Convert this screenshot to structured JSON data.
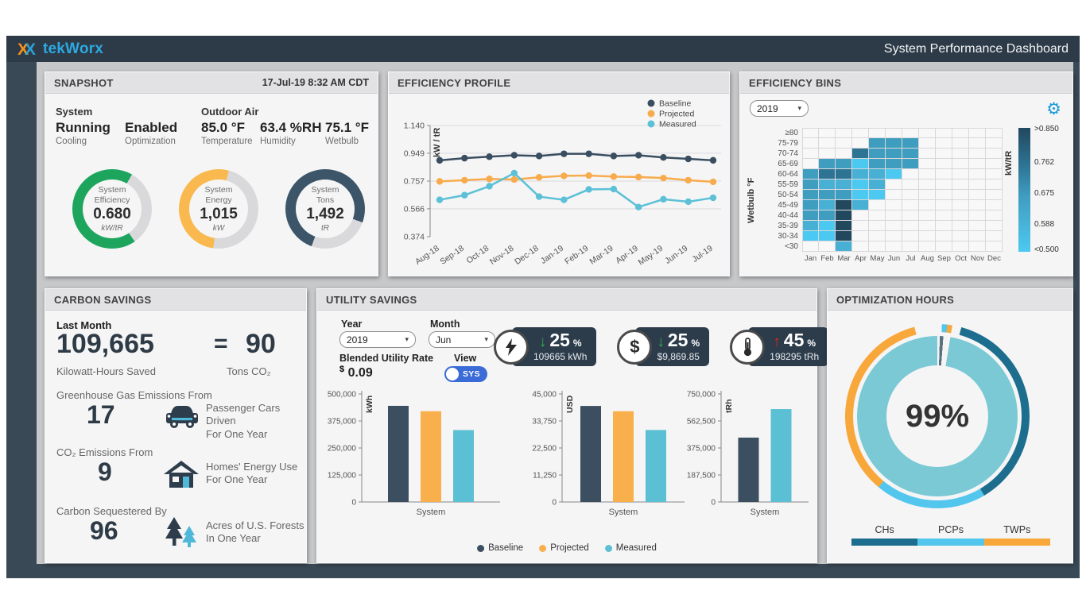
{
  "titlebar": {
    "logo": "tekWorx",
    "title": "System Performance Dashboard"
  },
  "icons": {
    "caret": "▾",
    "gear": "⚙",
    "equals": "="
  },
  "snapshot": {
    "header": "SNAPSHOT",
    "timestamp": "17-Jul-19 8:32 AM CDT",
    "system_label": "System",
    "outdoor_label": "Outdoor Air",
    "stats": [
      {
        "value": "Running",
        "label": "Cooling"
      },
      {
        "value": "Enabled",
        "label": "Optimization"
      },
      {
        "value": "85.0 °F",
        "label": "Temperature"
      },
      {
        "value": "63.4 %RH",
        "label": "Humidity"
      },
      {
        "value": "75.1 °F",
        "label": "Wetbulb"
      }
    ],
    "track_color": "#d9d9db",
    "gauges": [
      {
        "line1": "System",
        "line2": "Efficiency",
        "value": "0.680",
        "unit": "kW/tR",
        "fraction": 0.68,
        "start_deg": 30,
        "color": "#1ea55d"
      },
      {
        "line1": "System",
        "line2": "Energy",
        "value": "1,015",
        "unit": "kW",
        "fraction": 0.52,
        "start_deg": 15,
        "color": "#f9b94e"
      },
      {
        "line1": "System",
        "line2": "Tons",
        "value": "1,492",
        "unit": "tR",
        "fraction": 0.75,
        "start_deg": 110,
        "color": "#3d5568"
      }
    ]
  },
  "profile": {
    "header": "EFFICIENCY PROFILE",
    "chart": {
      "type": "line",
      "ylabel": "kW / tR",
      "ymin": 0.374,
      "ymax": 1.14,
      "yticks": [
        "1.140",
        "0.949",
        "0.757",
        "0.566",
        "0.374"
      ],
      "x": [
        "Aug-18",
        "Sep-18",
        "Oct-18",
        "Nov-18",
        "Dec-18",
        "Jan-19",
        "Feb-19",
        "Mar-19",
        "Apr-19",
        "May-19",
        "Jun-19",
        "Jul-19"
      ],
      "series": [
        {
          "name": "Baseline",
          "color": "#3a4e60",
          "values": [
            0.9,
            0.915,
            0.925,
            0.935,
            0.93,
            0.945,
            0.945,
            0.93,
            0.935,
            0.92,
            0.91,
            0.9
          ]
        },
        {
          "name": "Projected",
          "color": "#f8ab4c",
          "values": [
            0.755,
            0.763,
            0.772,
            0.768,
            0.783,
            0.793,
            0.795,
            0.788,
            0.785,
            0.778,
            0.763,
            0.752
          ]
        },
        {
          "name": "Measured",
          "color": "#5cc0d6",
          "values": [
            0.628,
            0.66,
            0.722,
            0.812,
            0.65,
            0.628,
            0.7,
            0.702,
            0.578,
            0.632,
            0.615,
            0.642
          ]
        }
      ]
    }
  },
  "bins": {
    "header": "EFFICIENCY BINS",
    "year": "2019",
    "ylabel": "Wetbulb °F",
    "colorbar_label": "kW/tR",
    "colorbar_ticks": [
      ">0.850",
      "0.762",
      "0.675",
      "0.588",
      "<0.500"
    ],
    "months": [
      "Jan",
      "Feb",
      "Mar",
      "Apr",
      "May",
      "Jun",
      "Jul",
      "Aug",
      "Sep",
      "Oct",
      "Nov",
      "Dec"
    ],
    "palette": {
      "1": "#4cc9f1",
      "2": "#47b0d4",
      "3": "#3f9dc0",
      "4": "#2d7394",
      "5": "#22485e"
    },
    "rows": [
      {
        "label": "≥80",
        "cells": [
          0,
          0,
          0,
          0,
          0,
          0,
          0,
          0,
          0,
          0,
          0,
          0
        ]
      },
      {
        "label": "75-79",
        "cells": [
          0,
          0,
          0,
          0,
          3,
          3,
          3,
          0,
          0,
          0,
          0,
          0
        ]
      },
      {
        "label": "70-74",
        "cells": [
          0,
          0,
          0,
          4,
          3,
          3,
          3,
          0,
          0,
          0,
          0,
          0
        ]
      },
      {
        "label": "65-69",
        "cells": [
          0,
          3,
          3,
          1,
          3,
          3,
          3,
          0,
          0,
          0,
          0,
          0
        ]
      },
      {
        "label": "60-64",
        "cells": [
          3,
          4,
          4,
          2,
          2,
          1,
          0,
          0,
          0,
          0,
          0,
          0
        ]
      },
      {
        "label": "55-59",
        "cells": [
          3,
          2,
          2,
          1,
          2,
          0,
          0,
          0,
          0,
          0,
          0,
          0
        ]
      },
      {
        "label": "50-54",
        "cells": [
          3,
          3,
          3,
          1,
          1,
          0,
          0,
          0,
          0,
          0,
          0,
          0
        ]
      },
      {
        "label": "45-49",
        "cells": [
          3,
          2,
          5,
          2,
          0,
          0,
          0,
          0,
          0,
          0,
          0,
          0
        ]
      },
      {
        "label": "40-44",
        "cells": [
          3,
          3,
          5,
          0,
          0,
          0,
          0,
          0,
          0,
          0,
          0,
          0
        ]
      },
      {
        "label": "35-39",
        "cells": [
          2,
          1,
          5,
          0,
          0,
          0,
          0,
          0,
          0,
          0,
          0,
          0
        ]
      },
      {
        "label": "30-34",
        "cells": [
          1,
          1,
          5,
          0,
          0,
          0,
          0,
          0,
          0,
          0,
          0,
          0
        ]
      },
      {
        "label": "<30",
        "cells": [
          0,
          0,
          2,
          0,
          0,
          0,
          0,
          0,
          0,
          0,
          0,
          0
        ]
      }
    ]
  },
  "carbon": {
    "header": "CARBON SAVINGS",
    "last_month_label": "Last Month",
    "kwh_value": "109,665",
    "equals": "=",
    "tons_value": "90",
    "kwh_label": "Kilowatt-Hours Saved",
    "tons_label": "Tons CO₂",
    "rows": [
      {
        "label": "Greenhouse Gas Emissions From",
        "value": "17",
        "icon": "car-icon",
        "caption1": "Passenger Cars Driven",
        "caption2": "For One Year"
      },
      {
        "label": "CO₂ Emissions From",
        "value": "9",
        "icon": "house-icon",
        "caption1": "Homes' Energy Use",
        "caption2": "For One Year"
      },
      {
        "label": "Carbon Sequestered By",
        "value": "96",
        "icon": "trees-icon",
        "caption1": "Acres of U.S. Forests",
        "caption2": "In One Year"
      }
    ]
  },
  "utility": {
    "header": "UTILITY SAVINGS",
    "year_label": "Year",
    "year": "2019",
    "month_label": "Month",
    "month": "Jun",
    "rate_label": "Blended Utility Rate",
    "rate_currency": "$",
    "rate_value": "0.09",
    "view_label": "View",
    "view_value": "SYS",
    "pct_symbol": "%",
    "kpis": [
      {
        "icon": "bolt-icon",
        "arrow": "↓",
        "arrow_color": "#2fae4e",
        "percent": "25",
        "sub": "109665 kWh"
      },
      {
        "icon": "dollar-icon",
        "arrow": "↓",
        "arrow_color": "#2fae4e",
        "percent": "25",
        "sub": "$9,869.85"
      },
      {
        "icon": "thermometer-icon",
        "arrow": "↑",
        "arrow_color": "#e3261c",
        "percent": "45",
        "sub": "198295 tRh"
      }
    ],
    "charts": [
      {
        "unit": "kWh",
        "ymax": 500000,
        "yticks": [
          0,
          125000,
          250000,
          375000,
          500000
        ],
        "xlabel": "System",
        "bars": [
          {
            "name": "Baseline",
            "color": "#3c4f60",
            "value": 445000
          },
          {
            "name": "Projected",
            "color": "#f9b04c",
            "value": 420000
          },
          {
            "name": "Measured",
            "color": "#5bc0d4",
            "value": 333000
          }
        ]
      },
      {
        "unit": "USD",
        "ymax": 45000,
        "yticks": [
          0,
          11250,
          22500,
          33750,
          45000
        ],
        "xlabel": "System",
        "bars": [
          {
            "name": "Baseline",
            "color": "#3c4f60",
            "value": 40000
          },
          {
            "name": "Projected",
            "color": "#f9b04c",
            "value": 37800
          },
          {
            "name": "Measured",
            "color": "#5bc0d4",
            "value": 30000
          }
        ]
      },
      {
        "unit": "tRh",
        "ymax": 750000,
        "yticks": [
          0,
          187500,
          375000,
          562500,
          750000
        ],
        "xlabel": "System",
        "bars": [
          {
            "name": "Baseline",
            "color": "#3c4f60",
            "value": 447000
          },
          {
            "name": "Measured",
            "color": "#5bc0d4",
            "value": 645000
          }
        ]
      }
    ],
    "legend": [
      {
        "name": "Baseline",
        "color": "#3c4f60"
      },
      {
        "name": "Projected",
        "color": "#f9b04c"
      },
      {
        "name": "Measured",
        "color": "#5bc0d4"
      }
    ]
  },
  "optimization": {
    "header": "OPTIMIZATION HOURS",
    "center_value": "99%",
    "outer_segments": [
      {
        "name": "gap",
        "color": "#f5f5f6",
        "from": 0,
        "to": 0.8
      },
      {
        "name": "pcps-sliver",
        "color": "#53c6ee",
        "from": 0.8,
        "to": 1.7
      },
      {
        "name": "twps-sliver",
        "color": "#f8a83b",
        "from": 1.7,
        "to": 2.6
      },
      {
        "name": "gap",
        "color": "#f5f5f6",
        "from": 2.6,
        "to": 4.2
      },
      {
        "name": "CHs",
        "color": "#1d6e8e",
        "from": 4.2,
        "to": 41.5
      },
      {
        "name": "PCPs",
        "color": "#53c6ee",
        "from": 41.5,
        "to": 61.0
      },
      {
        "name": "TWPs",
        "color": "#f8a83b",
        "from": 61.0,
        "to": 96.0
      },
      {
        "name": "gap",
        "color": "#f5f5f6",
        "from": 96.0,
        "to": 100
      }
    ],
    "inner_segments": [
      {
        "name": "gap",
        "color": "#f5f5f6",
        "from": 0,
        "to": 0.5
      },
      {
        "name": "notch",
        "color": "#5a7280",
        "from": 0.5,
        "to": 1.2
      },
      {
        "name": "gap",
        "color": "#f5f5f6",
        "from": 1.2,
        "to": 2.6
      },
      {
        "name": "hours",
        "color": "#7ac9d5",
        "from": 2.6,
        "to": 100
      }
    ],
    "legend": [
      {
        "name": "CHs",
        "color": "#1d6e8e"
      },
      {
        "name": "PCPs",
        "color": "#53c6ee"
      },
      {
        "name": "TWPs",
        "color": "#f8a83b"
      }
    ]
  }
}
